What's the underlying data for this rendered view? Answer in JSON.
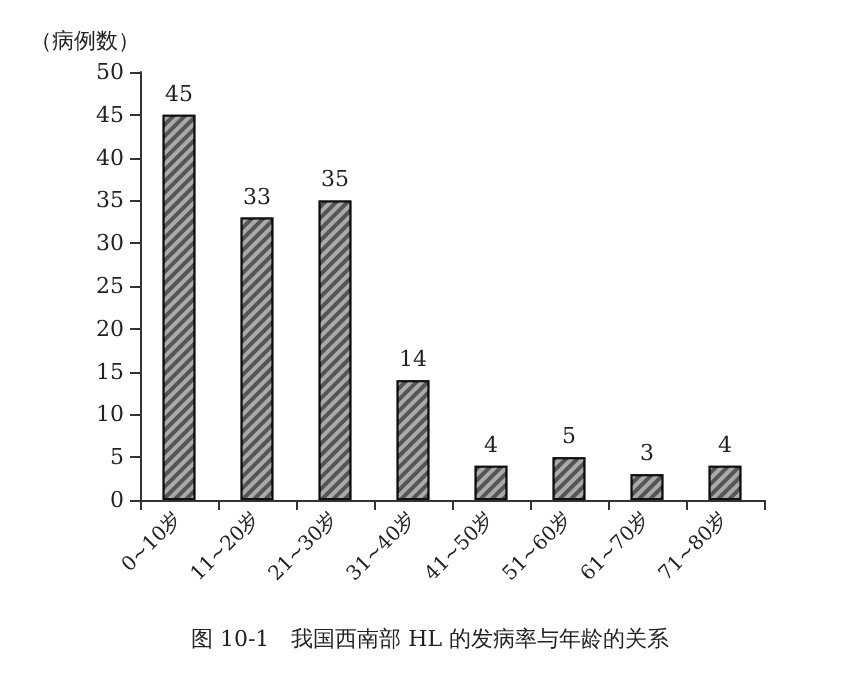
{
  "chart_data": {
    "type": "bar",
    "title": "图 10-1　我国西南部 HL 的发病率与年龄的关系",
    "ylabel": "（病例数）",
    "categories": [
      "0~10岁",
      "11~20岁",
      "21~30岁",
      "31~40岁",
      "41~50岁",
      "51~60岁",
      "61~70岁",
      "71~80岁"
    ],
    "values": [
      45,
      33,
      35,
      14,
      4,
      5,
      3,
      4
    ],
    "color": "#555555",
    "data_labels": true,
    "ylim": [
      0,
      50
    ],
    "yticks": [
      0,
      5,
      10,
      15,
      20,
      25,
      30,
      35,
      40,
      45,
      50
    ],
    "grid": false
  }
}
